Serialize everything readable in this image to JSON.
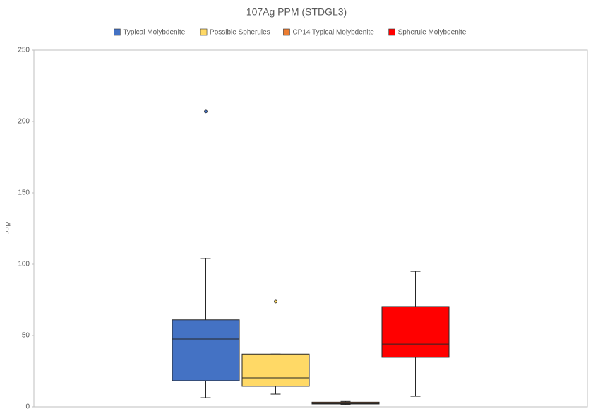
{
  "chart_data": {
    "type": "box",
    "title": "107Ag PPM (STDGL3)",
    "y_label": "PPM",
    "ylim": [
      0,
      250
    ],
    "yticks": [
      0,
      50,
      100,
      150,
      200,
      250
    ],
    "series": [
      {
        "name": "Typical Molybdenite",
        "color": "#4472c4",
        "min": 6.4,
        "q1": 18.3,
        "median": 47.5,
        "q3": 61,
        "max": 104,
        "outliers": [
          207
        ]
      },
      {
        "name": "Possible Spherules",
        "color": "#ffd966",
        "min": 8.9,
        "q1": 14.4,
        "median": 20.3,
        "q3": 37,
        "max": 37,
        "outliers": [
          73.8
        ]
      },
      {
        "name": "CP14 Typical Molybdenite",
        "color": "#ed7d31",
        "min": 1.5,
        "q1": 2,
        "median": 2.5,
        "q3": 3.3,
        "max": 3.8,
        "outliers": []
      },
      {
        "name": "Spherule Molybdenite",
        "color": "#ff0000",
        "min": 7.4,
        "q1": 34.7,
        "median": 44,
        "q3": 70.3,
        "max": 95,
        "outliers": []
      }
    ]
  }
}
